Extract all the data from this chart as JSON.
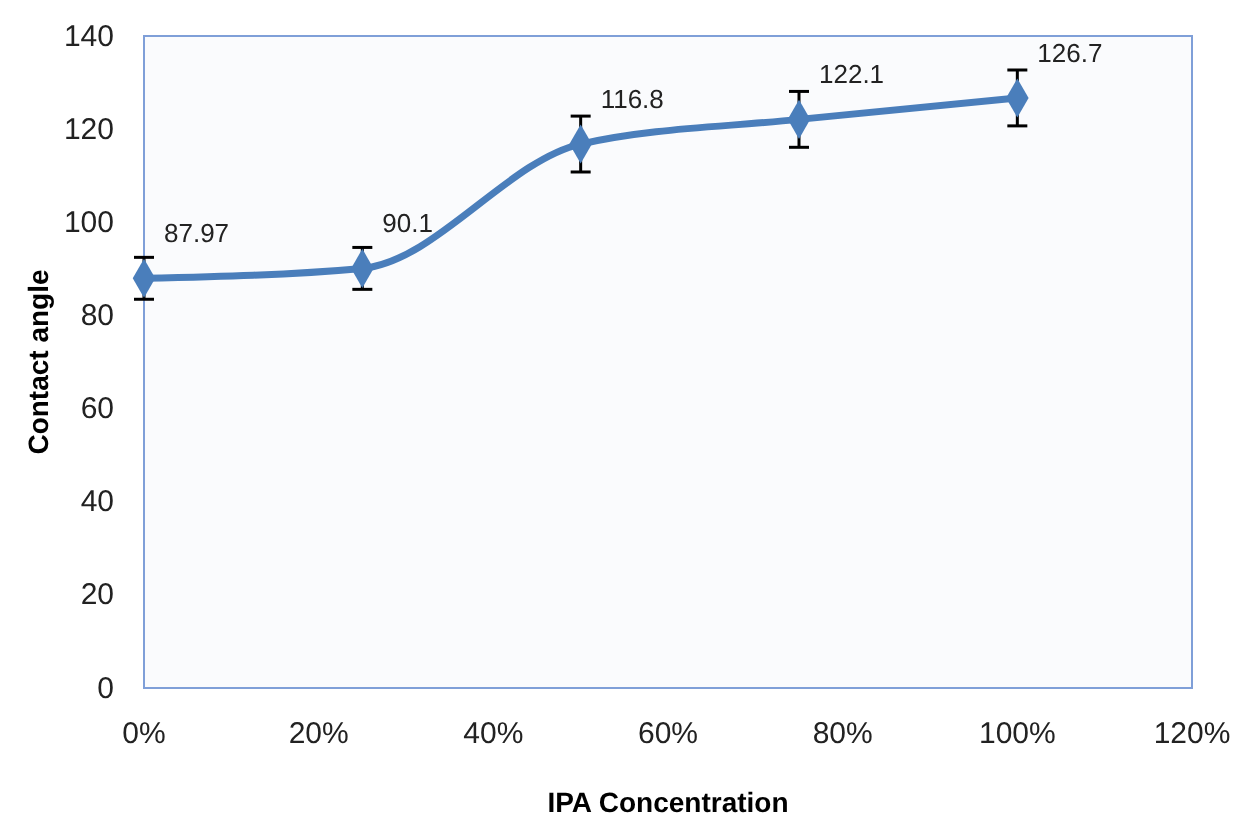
{
  "chart_data": {
    "type": "line",
    "xlabel": "IPA Concentration",
    "ylabel": "Contact angle",
    "x": [
      0,
      25,
      50,
      75,
      100
    ],
    "series": [
      {
        "color": "#4a7ebb",
        "values": [
          87.97,
          90.1,
          116.8,
          122.1,
          126.7
        ],
        "errors": [
          4.5,
          4.5,
          6,
          6,
          6
        ]
      }
    ],
    "xlim": [
      0,
      120
    ],
    "xticks": [
      {
        "value": 0,
        "label": "0%"
      },
      {
        "value": 20,
        "label": "20%"
      },
      {
        "value": 40,
        "label": "40%"
      },
      {
        "value": 60,
        "label": "60%"
      },
      {
        "value": 80,
        "label": "80%"
      },
      {
        "value": 100,
        "label": "100%"
      },
      {
        "value": 120,
        "label": "120%"
      }
    ],
    "ylim": [
      0,
      140
    ],
    "yticks": [
      0,
      20,
      40,
      60,
      80,
      100,
      120,
      140
    ],
    "grid": false,
    "marker": "diamond",
    "line_style": "solid",
    "data_labels": true
  }
}
